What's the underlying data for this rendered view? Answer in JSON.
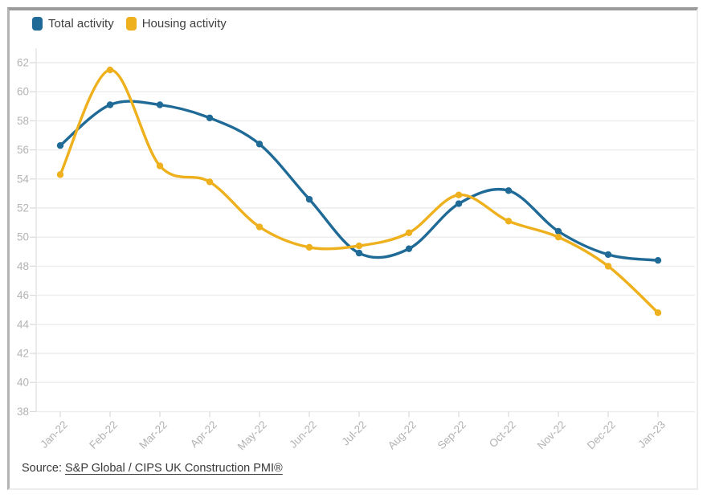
{
  "legend": {
    "items": [
      {
        "label": "Total activity",
        "color": "#1f6a96"
      },
      {
        "label": "Housing activity",
        "color": "#eeb01c"
      }
    ]
  },
  "source": {
    "prefix": "Source: ",
    "link_text": "S&P Global / CIPS UK Construction PMI®"
  },
  "colors": {
    "total_series": "#1f6a96",
    "housing_series": "#eeb01c",
    "axis_text": "#b3b3b3",
    "gridline": "#ececec",
    "axis_line": "#e3e3e3",
    "tick": "#d9d9d9",
    "legend_text": "#3f3f3f",
    "source_text": "#383838"
  },
  "chart_data": {
    "type": "line",
    "x": [
      "Jan-22",
      "Feb-22",
      "Mar-22",
      "Apr-22",
      "May-22",
      "Jun-22",
      "Jul-22",
      "Aug-22",
      "Sep-22",
      "Oct-22",
      "Nov-22",
      "Dec-22",
      "Jan-23"
    ],
    "series": [
      {
        "name": "Total activity",
        "color": "#1f6a96",
        "values": [
          56.3,
          59.1,
          59.1,
          58.2,
          56.4,
          52.6,
          48.9,
          49.2,
          52.3,
          53.2,
          50.4,
          48.8,
          48.4
        ]
      },
      {
        "name": "Housing activity",
        "color": "#eeb01c",
        "values": [
          54.3,
          61.5,
          54.9,
          53.8,
          50.7,
          49.3,
          49.4,
          50.3,
          52.9,
          51.1,
          50.0,
          48.0,
          44.8
        ]
      }
    ],
    "title": "",
    "xlabel": "",
    "ylabel": "",
    "ylim": [
      38,
      62
    ],
    "ytick_step": 2,
    "grid": true,
    "line_smoothing": true,
    "legend_position": "top-left"
  }
}
